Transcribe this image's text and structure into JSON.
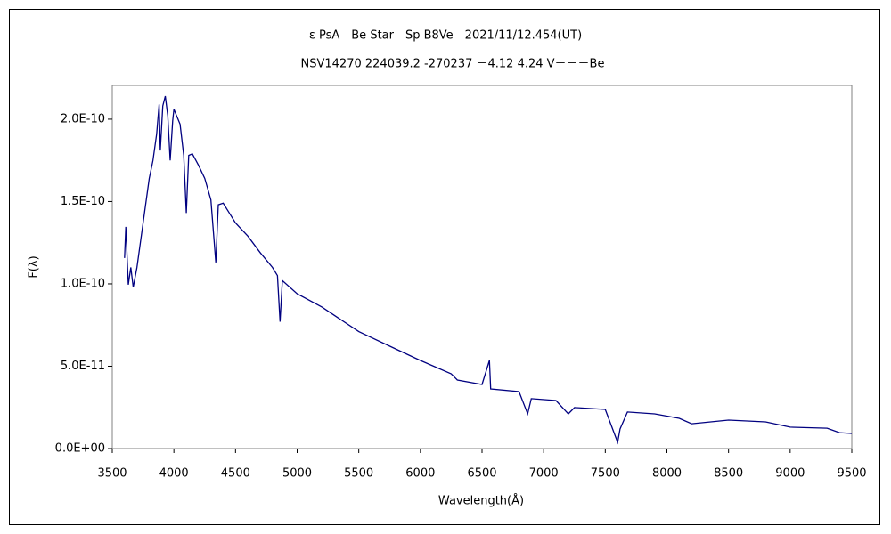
{
  "chart_data": {
    "type": "line",
    "title": "ε PsA　Be Star　Sp B8Ve　2021/11/12.454(UT)",
    "subtitle": "NSV14270 224039.2 -270237 －4.12 4.24 V－－－Be",
    "x_label": "Wavelength(Å)",
    "y_label": "F(λ)",
    "x": [
      3600,
      3610,
      3630,
      3650,
      3670,
      3700,
      3750,
      3800,
      3830,
      3860,
      3880,
      3890,
      3910,
      3930,
      3950,
      3970,
      3990,
      4000,
      4050,
      4080,
      4101,
      4120,
      4150,
      4200,
      4250,
      4300,
      4340,
      4360,
      4400,
      4500,
      4600,
      4700,
      4800,
      4840,
      4861,
      4880,
      5000,
      5200,
      5500,
      5800,
      6000,
      6250,
      6300,
      6500,
      6560,
      6570,
      6800,
      6870,
      6900,
      7100,
      7200,
      7250,
      7500,
      7600,
      7620,
      7680,
      7900,
      8100,
      8200,
      8500,
      8800,
      9000,
      9300,
      9400,
      9500
    ],
    "series": [
      {
        "name": "F(λ)",
        "color": "#000080",
        "values": [
          1.157e-10,
          1.346e-10,
          9.95e-11,
          1.1e-10,
          9.8e-11,
          1.1e-10,
          1.37e-10,
          1.64e-10,
          1.75e-10,
          1.91e-10,
          2.09e-10,
          1.81e-10,
          2.08e-10,
          2.14e-10,
          2.02e-10,
          1.75e-10,
          1.99e-10,
          2.06e-10,
          1.97e-10,
          1.78e-10,
          1.43e-10,
          1.78e-10,
          1.79e-10,
          1.72e-10,
          1.64e-10,
          1.51e-10,
          1.13e-10,
          1.48e-10,
          1.49e-10,
          1.37e-10,
          1.29e-10,
          1.19e-10,
          1.1e-10,
          1.05e-10,
          7.7e-11,
          1.02e-10,
          9.4e-11,
          8.6e-11,
          7.1e-11,
          6.05e-11,
          5.35e-11,
          4.54e-11,
          4.16e-11,
          3.89e-11,
          5.35e-11,
          3.62e-11,
          3.46e-11,
          2.11e-11,
          3.03e-11,
          2.92e-11,
          2.11e-11,
          2.49e-11,
          2.38e-11,
          3.8e-12,
          1.19e-11,
          2.22e-11,
          2.11e-11,
          1.84e-11,
          1.51e-11,
          1.73e-11,
          1.62e-11,
          1.3e-11,
          1.24e-11,
          9.7e-12,
          9.2e-12
        ]
      }
    ],
    "xlim": [
      3500,
      9500
    ],
    "xticks": [
      3500,
      4000,
      4500,
      5000,
      5500,
      6000,
      6500,
      7000,
      7500,
      8000,
      8500,
      9000,
      9500
    ],
    "ylim": [
      0,
      2.205e-10
    ],
    "yticks": [
      {
        "value": 0,
        "label": "0.0E+00"
      },
      {
        "value": 5e-11,
        "label": "5.0E-11"
      },
      {
        "value": 1e-10,
        "label": "1.0E-10"
      },
      {
        "value": 1.5e-10,
        "label": "1.5E-10"
      },
      {
        "value": 2e-10,
        "label": "2.0E-10"
      }
    ]
  }
}
